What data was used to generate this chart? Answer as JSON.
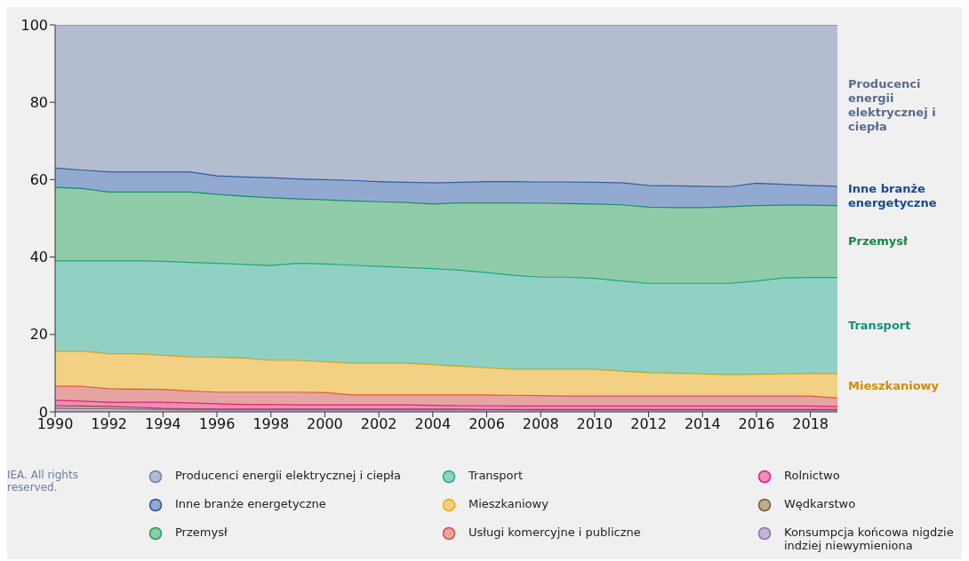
{
  "chart_data": {
    "type": "area",
    "stacked": true,
    "x": [
      1990,
      1991,
      1992,
      1993,
      1994,
      1995,
      1996,
      1997,
      1998,
      1999,
      2000,
      2001,
      2002,
      2003,
      2004,
      2005,
      2006,
      2007,
      2008,
      2009,
      2010,
      2011,
      2012,
      2013,
      2014,
      2015,
      2016,
      2017,
      2018,
      2019
    ],
    "xlim": [
      1990,
      2019
    ],
    "xticks": [
      1990,
      1992,
      1994,
      1996,
      1998,
      2000,
      2002,
      2004,
      2006,
      2008,
      2010,
      2012,
      2014,
      2016,
      2018
    ],
    "ylim": [
      0,
      100
    ],
    "yticks": [
      0,
      20,
      40,
      60,
      80,
      100
    ],
    "grid": false,
    "legend": "bottom",
    "annotations": [
      "IEA. All rights reserved."
    ],
    "series": [
      {
        "name": "Konsumpcja końcowa nigdzie indziej niewymieniona",
        "color": "#8a6fb0",
        "values": [
          0.9,
          0.8,
          0.8,
          0.7,
          0.6,
          0.5,
          0.5,
          0.5,
          0.5,
          0.5,
          0.5,
          0.5,
          0.5,
          0.5,
          0.5,
          0.5,
          0.5,
          0.5,
          0.4,
          0.4,
          0.4,
          0.4,
          0.4,
          0.4,
          0.4,
          0.4,
          0.4,
          0.4,
          0.4,
          0.4
        ]
      },
      {
        "name": "Wędkarstwo",
        "color": "#7a5a2a",
        "values": [
          0.7,
          0.7,
          0.6,
          0.5,
          0.3,
          0.3,
          0.2,
          0.2,
          0.2,
          0.2,
          0.2,
          0.2,
          0.2,
          0.2,
          0.2,
          0.2,
          0.1,
          0.1,
          0.2,
          0.2,
          0.2,
          0.2,
          0.2,
          0.2,
          0.2,
          0.2,
          0.2,
          0.2,
          0.2,
          0.2
        ]
      },
      {
        "name": "Rolnictwo",
        "color": "#e8187a",
        "values": [
          1.4,
          1.3,
          1.1,
          1.3,
          1.6,
          1.5,
          1.4,
          1.2,
          1.2,
          1.1,
          1.1,
          1.1,
          1.1,
          1.1,
          1.0,
          0.9,
          1.0,
          0.9,
          0.9,
          0.9,
          0.9,
          0.9,
          0.9,
          0.9,
          0.9,
          0.9,
          0.9,
          0.9,
          0.9,
          0.8
        ]
      },
      {
        "name": "Usługi komercyjne i publiczne",
        "color": "#d94a45",
        "values": [
          3.7,
          3.8,
          3.5,
          3.4,
          3.3,
          3.1,
          3.0,
          3.2,
          3.2,
          3.3,
          3.2,
          2.6,
          2.6,
          2.6,
          2.7,
          2.8,
          2.8,
          2.8,
          2.7,
          2.6,
          2.6,
          2.6,
          2.6,
          2.6,
          2.6,
          2.6,
          2.6,
          2.6,
          2.6,
          2.2
        ]
      },
      {
        "name": "Mieszkaniowy",
        "color": "#f5a800",
        "values": [
          9.0,
          9.1,
          9.0,
          9.1,
          8.8,
          8.8,
          9.0,
          8.8,
          8.2,
          8.2,
          7.9,
          8.2,
          8.2,
          8.2,
          7.8,
          7.4,
          7.0,
          6.7,
          6.8,
          6.9,
          6.9,
          6.4,
          6.0,
          5.9,
          5.7,
          5.5,
          5.6,
          5.7,
          5.8,
          6.3
        ]
      },
      {
        "name": "Transport",
        "color": "#1aab8f",
        "values": [
          23.3,
          23.3,
          24.0,
          24.0,
          24.3,
          24.4,
          24.3,
          24.2,
          24.5,
          25.1,
          25.3,
          25.3,
          25.0,
          24.7,
          24.8,
          24.8,
          24.6,
          24.3,
          23.8,
          23.8,
          23.5,
          23.3,
          23.1,
          23.2,
          23.4,
          23.6,
          24.1,
          24.8,
          24.8,
          24.8
        ]
      },
      {
        "name": "Przemysł",
        "color": "#1a9f55",
        "values": [
          19.0,
          18.7,
          17.8,
          17.8,
          17.9,
          18.2,
          17.8,
          17.6,
          17.5,
          16.6,
          16.6,
          16.6,
          16.7,
          16.8,
          16.7,
          17.4,
          18.0,
          18.7,
          19.1,
          19.0,
          19.2,
          19.7,
          19.7,
          19.6,
          19.6,
          19.8,
          19.5,
          18.8,
          18.7,
          18.6
        ]
      },
      {
        "name": "Inne branże energetyczne",
        "color": "#1f55a8",
        "values": [
          5.0,
          4.8,
          5.2,
          5.2,
          5.2,
          5.2,
          4.8,
          5.0,
          5.2,
          5.2,
          5.2,
          5.3,
          5.2,
          5.2,
          5.5,
          5.3,
          5.5,
          5.5,
          5.5,
          5.6,
          5.6,
          5.7,
          5.6,
          5.6,
          5.5,
          5.2,
          5.8,
          5.4,
          5.1,
          5.0
        ]
      },
      {
        "name": "Producenci energii elektrycznej i ciepła",
        "color": "#6a7fa8",
        "values": [
          37.0,
          37.5,
          38.0,
          38.0,
          38.0,
          38.0,
          39.0,
          39.3,
          39.5,
          39.8,
          40.0,
          40.2,
          40.5,
          40.7,
          40.8,
          40.7,
          40.5,
          40.5,
          40.6,
          40.6,
          40.7,
          40.8,
          41.5,
          41.6,
          41.7,
          41.8,
          40.9,
          41.2,
          41.5,
          41.7
        ]
      }
    ]
  }
}
